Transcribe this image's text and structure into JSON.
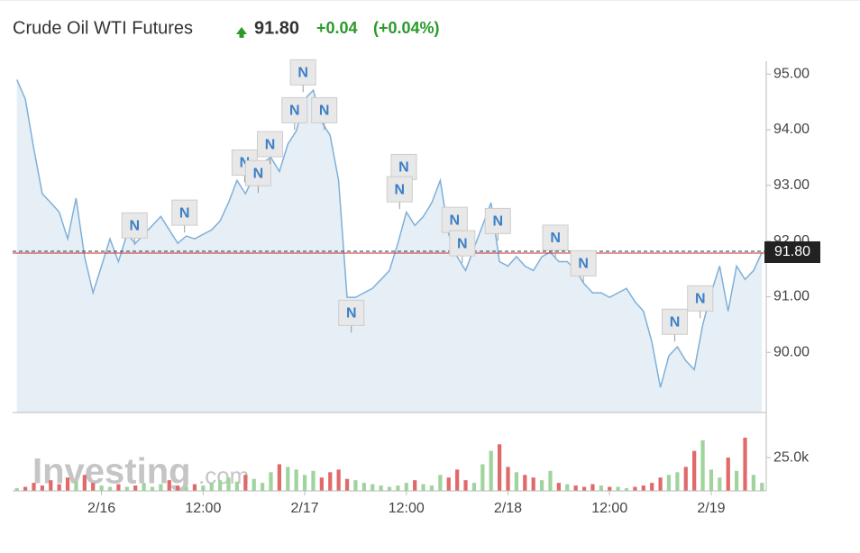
{
  "chart_data": {
    "type": "area",
    "title": "Crude Oil WTI Futures",
    "price": {
      "value": 91.8,
      "label": "91.80"
    },
    "change": "+0.04",
    "change_percent": "(+0.04%)",
    "watermark_main": "Investing",
    "watermark_suffix": ".com",
    "line_color": "#7fb0d8",
    "fill_color": "#e6eef6",
    "up_color": "#9fd49d",
    "down_color": "#e06a6a",
    "x": [
      -10,
      -9,
      -8,
      -7,
      -6,
      -5,
      -4,
      -3,
      -2,
      -1,
      0,
      1,
      2,
      3,
      4,
      5,
      6,
      7,
      8,
      9,
      10,
      11,
      12,
      13,
      14,
      15,
      16,
      17,
      18,
      19,
      20,
      21,
      22,
      23,
      24,
      25,
      26,
      27,
      28,
      29,
      30,
      31,
      32,
      33,
      34,
      35,
      36,
      37,
      38,
      39,
      40,
      41,
      42,
      43,
      44,
      45,
      46,
      47,
      48,
      49,
      50,
      51,
      52,
      53,
      54,
      55,
      56,
      57,
      58,
      59,
      60,
      61,
      62,
      63,
      64,
      65,
      66,
      67,
      68,
      69,
      70,
      71,
      72,
      73,
      74,
      75,
      76,
      77,
      78
    ],
    "values": [
      94.9,
      94.55,
      93.66,
      92.85,
      92.69,
      92.52,
      92.04,
      92.77,
      91.72,
      91.07,
      91.55,
      92.04,
      91.63,
      92.12,
      91.96,
      92.12,
      92.28,
      92.44,
      92.2,
      91.96,
      92.09,
      92.04,
      92.12,
      92.2,
      92.36,
      92.69,
      93.09,
      92.85,
      93.17,
      93.41,
      93.5,
      93.25,
      93.74,
      93.98,
      94.55,
      94.71,
      94.14,
      93.9,
      93.09,
      90.99,
      90.99,
      91.07,
      91.15,
      91.31,
      91.47,
      91.96,
      92.52,
      92.28,
      92.44,
      92.69,
      93.09,
      92.12,
      91.72,
      91.47,
      91.88,
      92.28,
      92.69,
      91.63,
      91.55,
      91.72,
      91.55,
      91.47,
      91.72,
      91.8,
      91.63,
      91.63,
      91.47,
      91.23,
      91.07,
      91.07,
      90.99,
      91.07,
      91.15,
      90.91,
      90.74,
      90.18,
      89.37,
      89.94,
      90.1,
      89.85,
      89.69,
      90.5,
      91.07,
      91.55,
      90.74,
      91.55,
      91.31,
      91.47,
      91.8
    ],
    "volume": [
      2000,
      3000,
      6000,
      4000,
      8000,
      5000,
      10000,
      7000,
      12000,
      6000,
      4000,
      3000,
      5000,
      3000,
      4000,
      6000,
      3000,
      5000,
      8000,
      4000,
      3000,
      5000,
      4000,
      6000,
      8000,
      10000,
      7000,
      12000,
      9000,
      6000,
      14000,
      20000,
      18000,
      16000,
      12000,
      15000,
      10000,
      14000,
      16000,
      9000,
      8000,
      6000,
      5000,
      4000,
      3000,
      4000,
      6000,
      8000,
      5000,
      4000,
      12000,
      10000,
      16000,
      8000,
      6000,
      20000,
      30000,
      35000,
      18000,
      14000,
      12000,
      10000,
      8000,
      15000,
      6000,
      5000,
      4000,
      3000,
      5000,
      4000,
      3000,
      3000,
      2000,
      3000,
      4000,
      6000,
      10000,
      12000,
      14000,
      18000,
      30000,
      38000,
      16000,
      10000,
      25000,
      15000,
      40000,
      12000,
      6000
    ],
    "xlim": [
      -10.5,
      78.5
    ],
    "xticks": [
      {
        "value": 0,
        "label": "2/16"
      },
      {
        "value": 12,
        "label": "12:00"
      },
      {
        "value": 24,
        "label": "2/17"
      },
      {
        "value": 36,
        "label": "12:00"
      },
      {
        "value": 48,
        "label": "2/18"
      },
      {
        "value": 60,
        "label": "12:00"
      },
      {
        "value": 72,
        "label": "2/19"
      }
    ],
    "ylim": [
      88.92,
      95.23
    ],
    "yticks": [
      {
        "value": 90,
        "label": "90.00"
      },
      {
        "value": 91,
        "label": "91.00"
      },
      {
        "value": 92,
        "label": "92.00"
      },
      {
        "value": 93,
        "label": "93.00"
      },
      {
        "value": 94,
        "label": "94.00"
      },
      {
        "value": 95,
        "label": "95.00"
      }
    ],
    "y2lim": [
      0,
      57500
    ],
    "y2ticks": [
      {
        "value": 25000,
        "label": "25.0k"
      }
    ],
    "annotations": [
      {
        "x": 23.8,
        "y": 95.03,
        "text": "N"
      },
      {
        "x": 3.9,
        "y": 92.28,
        "text": "N"
      },
      {
        "x": 9.8,
        "y": 92.51,
        "text": "N"
      },
      {
        "x": 16.9,
        "y": 93.41,
        "text": "N"
      },
      {
        "x": 18.5,
        "y": 93.22,
        "text": "N"
      },
      {
        "x": 19.9,
        "y": 93.74,
        "text": "N"
      },
      {
        "x": 22.8,
        "y": 94.35,
        "text": "N"
      },
      {
        "x": 26.3,
        "y": 94.35,
        "text": "N"
      },
      {
        "x": 35.7,
        "y": 93.33,
        "text": "N"
      },
      {
        "x": 35.2,
        "y": 92.93,
        "text": "N"
      },
      {
        "x": 41.7,
        "y": 92.38,
        "text": "N"
      },
      {
        "x": 42.6,
        "y": 91.96,
        "text": "N"
      },
      {
        "x": 46.8,
        "y": 92.36,
        "text": "N"
      },
      {
        "x": 29.5,
        "y": 90.71,
        "text": "N"
      },
      {
        "x": 53.6,
        "y": 92.06,
        "text": "N"
      },
      {
        "x": 56.9,
        "y": 91.6,
        "text": "N"
      },
      {
        "x": 67.7,
        "y": 90.55,
        "text": "N"
      },
      {
        "x": 70.7,
        "y": 90.97,
        "text": "N"
      }
    ]
  }
}
